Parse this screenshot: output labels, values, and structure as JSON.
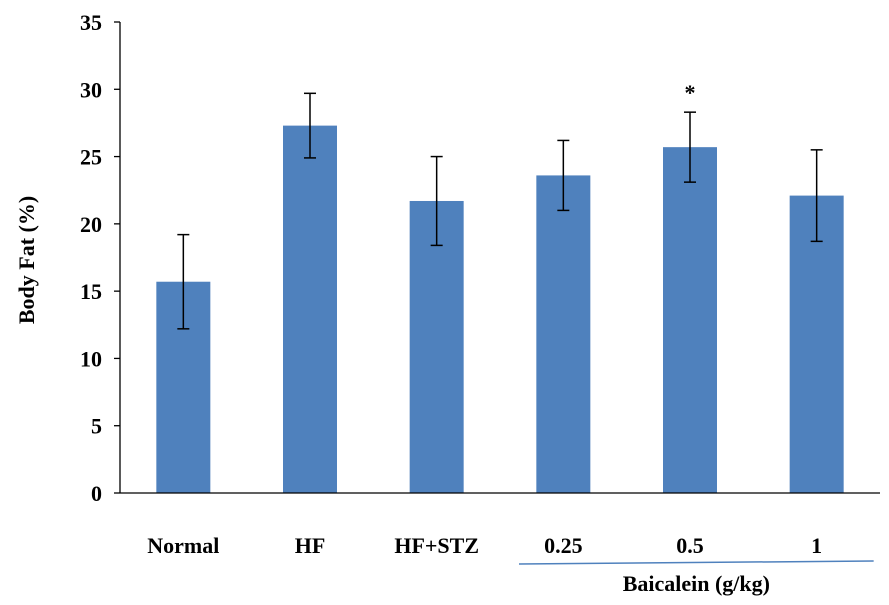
{
  "chart_data": {
    "type": "bar",
    "categories": [
      "Normal",
      "HF",
      "HF+STZ",
      "0.25",
      "0.5",
      "1"
    ],
    "values": [
      15.7,
      27.3,
      21.7,
      23.6,
      25.7,
      22.1
    ],
    "error": [
      3.5,
      2.4,
      3.3,
      2.6,
      2.6,
      3.4
    ],
    "annotations": [
      "",
      "",
      "",
      "",
      "*",
      ""
    ],
    "ylabel": "Body Fat (%)",
    "xlabel": "",
    "group_label": "Baicalein (g/kg)",
    "group_categories": [
      "0.25",
      "0.5",
      "1"
    ],
    "ylim": [
      0,
      35
    ],
    "yticks": [
      0,
      5,
      10,
      15,
      20,
      25,
      30,
      35
    ],
    "grid": false,
    "bar_color": "#4F81BD"
  }
}
